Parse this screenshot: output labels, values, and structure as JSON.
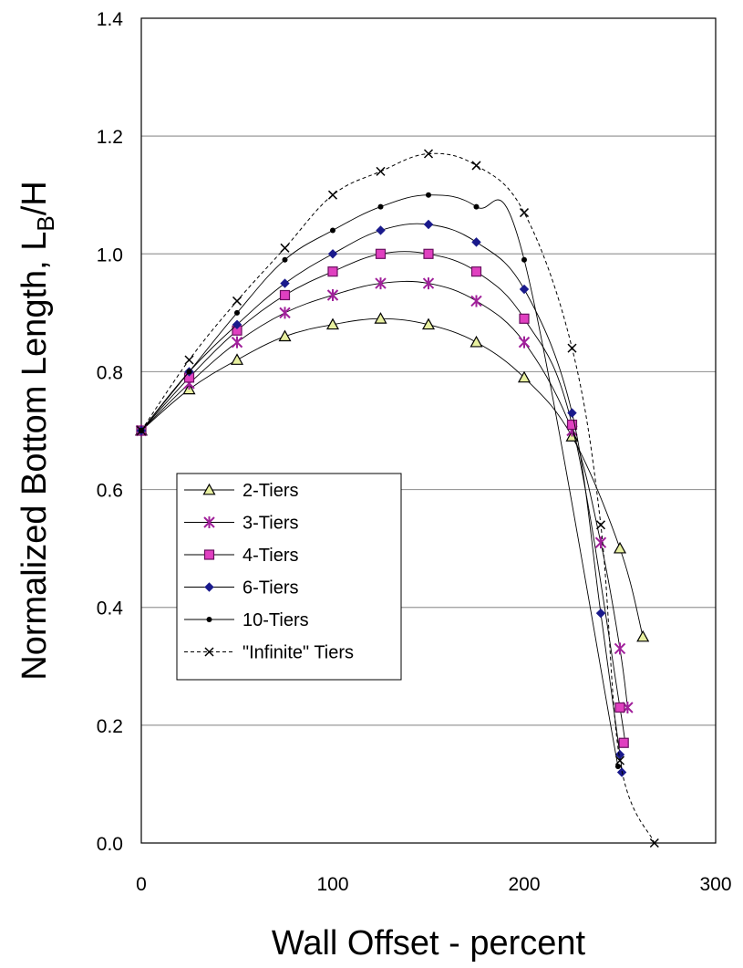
{
  "chart_data": {
    "type": "line",
    "title": "",
    "xlabel": "Wall Offset - percent",
    "ylabel_main": "Normalized Bottom Length, L",
    "ylabel_sub": "B",
    "ylabel_tail": "/H",
    "xlim": [
      0,
      300
    ],
    "ylim": [
      0.0,
      1.4
    ],
    "x_ticks": [
      0,
      100,
      200,
      300
    ],
    "y_ticks": [
      0.0,
      0.2,
      0.4,
      0.6,
      0.8,
      1.0,
      1.2,
      1.4
    ],
    "x_tick_labels": [
      "0",
      "100",
      "200",
      "300"
    ],
    "y_tick_labels": [
      "0.0",
      "0.2",
      "0.4",
      "0.6",
      "0.8",
      "1.0",
      "1.2",
      "1.4"
    ],
    "grid": "horizontal",
    "legend_placement": "center-left",
    "series": [
      {
        "name": "2-Tiers",
        "marker": "triangle",
        "dash": "solid",
        "marker_fill": "#e8f0a0",
        "x": [
          0,
          25,
          50,
          75,
          100,
          125,
          150,
          175,
          200,
          225,
          250,
          262
        ],
        "y": [
          0.7,
          0.77,
          0.82,
          0.86,
          0.88,
          0.89,
          0.88,
          0.85,
          0.79,
          0.69,
          0.5,
          0.35
        ]
      },
      {
        "name": "3-Tiers",
        "marker": "asterisk",
        "dash": "solid",
        "marker_fill": "#a0209a",
        "x": [
          0,
          25,
          50,
          75,
          100,
          125,
          150,
          175,
          200,
          225,
          240,
          250,
          254
        ],
        "y": [
          0.7,
          0.78,
          0.85,
          0.9,
          0.93,
          0.95,
          0.95,
          0.92,
          0.85,
          0.7,
          0.51,
          0.33,
          0.23
        ]
      },
      {
        "name": "4-Tiers",
        "marker": "square",
        "dash": "solid",
        "marker_fill": "#e040c0",
        "x": [
          0,
          25,
          50,
          75,
          100,
          125,
          150,
          175,
          200,
          225,
          250,
          252
        ],
        "y": [
          0.7,
          0.79,
          0.87,
          0.93,
          0.97,
          1.0,
          1.0,
          0.97,
          0.89,
          0.71,
          0.23,
          0.17
        ]
      },
      {
        "name": "6-Tiers",
        "marker": "diamond",
        "dash": "solid",
        "marker_fill": "#1a1a8c",
        "x": [
          0,
          25,
          50,
          75,
          100,
          125,
          150,
          175,
          200,
          225,
          240,
          250,
          251
        ],
        "y": [
          0.7,
          0.8,
          0.88,
          0.95,
          1.0,
          1.04,
          1.05,
          1.02,
          0.94,
          0.73,
          0.39,
          0.15,
          0.12
        ]
      },
      {
        "name": "10-Tiers",
        "marker": "dot",
        "dash": "solid",
        "marker_fill": "#000000",
        "x": [
          0,
          25,
          50,
          75,
          100,
          125,
          150,
          175,
          200,
          249
        ],
        "y": [
          0.7,
          0.8,
          0.9,
          0.99,
          1.04,
          1.08,
          1.1,
          1.08,
          0.99,
          0.13
        ]
      },
      {
        "name": "\"Infinite\" Tiers",
        "marker": "x",
        "dash": "dashed",
        "marker_fill": "#000000",
        "x": [
          0,
          25,
          50,
          75,
          100,
          125,
          150,
          175,
          200,
          225,
          240,
          250,
          268
        ],
        "y": [
          0.7,
          0.82,
          0.92,
          1.01,
          1.1,
          1.14,
          1.17,
          1.15,
          1.07,
          0.84,
          0.54,
          0.14,
          0.0
        ]
      }
    ]
  }
}
